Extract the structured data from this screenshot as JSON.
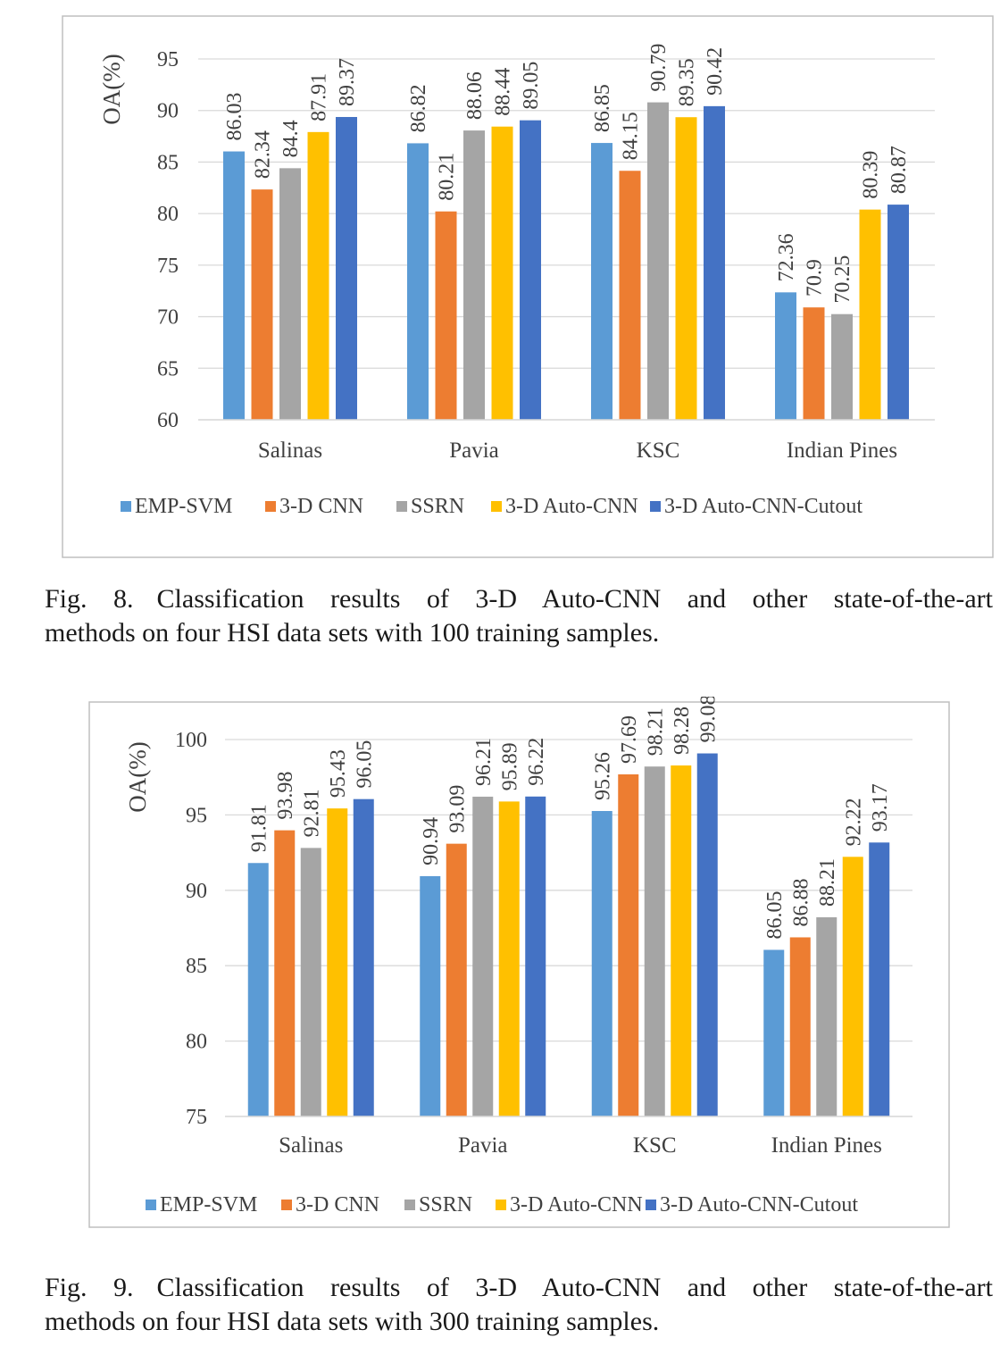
{
  "colors": {
    "series": [
      "#5b9bd5",
      "#ed7d31",
      "#a5a5a5",
      "#ffc000",
      "#4472c4"
    ],
    "grid": "#d9d9d9",
    "frame": "#bfbfbf",
    "text": "#404040"
  },
  "chart_data": [
    {
      "type": "bar",
      "ylabel": "OA(%)",
      "ylim": [
        60,
        95
      ],
      "yticks": [
        60,
        65,
        70,
        75,
        80,
        85,
        90,
        95
      ],
      "categories": [
        "Salinas",
        "Pavia",
        "KSC",
        "Indian Pines"
      ],
      "legend_position": "bottom",
      "grid": true,
      "series": [
        {
          "name": "EMP-SVM",
          "values": [
            86.03,
            86.82,
            86.85,
            72.36
          ],
          "labels": [
            "86.03",
            "86.82",
            "86.85",
            "72.36"
          ]
        },
        {
          "name": "3-D CNN",
          "values": [
            82.34,
            80.21,
            84.15,
            70.9
          ],
          "labels": [
            "82.34",
            "80.21",
            "84.15",
            "70.9"
          ]
        },
        {
          "name": "SSRN",
          "values": [
            84.4,
            88.06,
            90.79,
            70.25
          ],
          "labels": [
            "84.4",
            "88.06",
            "90.79",
            "70.25"
          ]
        },
        {
          "name": "3-D Auto-CNN",
          "values": [
            87.91,
            88.44,
            89.35,
            80.39
          ],
          "labels": [
            "87.91",
            "88.44",
            "89.35",
            "80.39"
          ]
        },
        {
          "name": "3-D Auto-CNN-Cutout",
          "values": [
            89.37,
            89.05,
            90.42,
            80.87
          ],
          "labels": [
            "89.37",
            "89.05",
            "90.42",
            "80.87"
          ]
        }
      ]
    },
    {
      "type": "bar",
      "ylabel": "OA(%)",
      "ylim": [
        75,
        100
      ],
      "yticks": [
        75,
        80,
        85,
        90,
        95,
        100
      ],
      "categories": [
        "Salinas",
        "Pavia",
        "KSC",
        "Indian Pines"
      ],
      "legend_position": "bottom",
      "grid": true,
      "series": [
        {
          "name": "EMP-SVM",
          "values": [
            91.81,
            90.94,
            95.26,
            86.05
          ],
          "labels": [
            "91.81",
            "90.94",
            "95.26",
            "86.05"
          ]
        },
        {
          "name": "3-D CNN",
          "values": [
            93.98,
            93.09,
            97.69,
            86.88
          ],
          "labels": [
            "93.98",
            "93.09",
            "97.69",
            "86.88"
          ]
        },
        {
          "name": "SSRN",
          "values": [
            92.81,
            96.21,
            98.21,
            88.21
          ],
          "labels": [
            "92.81",
            "96.21",
            "98.21",
            "88.21"
          ]
        },
        {
          "name": "3-D Auto-CNN",
          "values": [
            95.43,
            95.89,
            98.28,
            92.22
          ],
          "labels": [
            "95.43",
            "95.89",
            "98.28",
            "92.22"
          ]
        },
        {
          "name": "3-D Auto-CNN-Cutout",
          "values": [
            96.05,
            96.22,
            99.08,
            93.17
          ],
          "labels": [
            "96.05",
            "96.22",
            "99.08",
            "93.17"
          ]
        }
      ]
    }
  ],
  "captions": {
    "fig8": {
      "label": "Fig. 8.",
      "line1": "Classification results of 3-D Auto-CNN and other state-of-the-art",
      "line2": "methods on four HSI data sets with 100 training samples."
    },
    "fig9": {
      "label": "Fig. 9.",
      "line1": "Classification results of 3-D Auto-CNN and other state-of-the-art",
      "line2": "methods on four HSI data sets with 300 training samples."
    }
  }
}
